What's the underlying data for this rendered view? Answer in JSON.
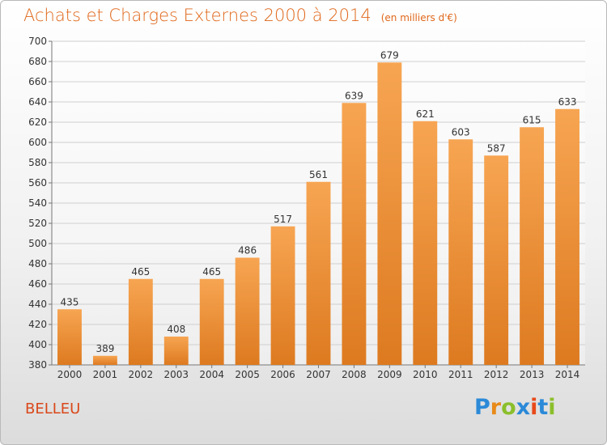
{
  "header": {
    "title": "Achats et Charges Externes 2000 à 2014",
    "unit": "(en milliers d'€)"
  },
  "location": "BELLEU",
  "logo": {
    "letters": [
      "P",
      "r",
      "o",
      "x",
      "i",
      "t",
      "i"
    ],
    "colors": [
      "#2b8ad8",
      "#e88a1a",
      "#8bbf2b",
      "#2b8ad8",
      "#e84a1a",
      "#2b8ad8",
      "#8bbf2b"
    ]
  },
  "colors": {
    "bar_light": "#f7a552",
    "bar_dark": "#dd7a20",
    "grid": "#cfcfcf"
  },
  "chart_data": {
    "type": "bar",
    "categories": [
      "2000",
      "2001",
      "2002",
      "2003",
      "2004",
      "2005",
      "2006",
      "2007",
      "2008",
      "2009",
      "2010",
      "2011",
      "2012",
      "2013",
      "2014"
    ],
    "values": [
      435,
      389,
      465,
      408,
      465,
      486,
      517,
      561,
      639,
      679,
      621,
      603,
      587,
      615,
      633
    ],
    "data_labels": [
      "435",
      "389",
      "465",
      "408",
      "465",
      "486",
      "517",
      "561",
      "639",
      "679",
      "621",
      "603",
      "587",
      "615",
      "633"
    ],
    "title": "Achats et Charges Externes 2000 à 2014",
    "xlabel": "",
    "ylabel": "",
    "ylim": [
      380,
      700
    ],
    "yticks": [
      380,
      400,
      420,
      440,
      460,
      480,
      500,
      520,
      540,
      560,
      580,
      600,
      620,
      640,
      660,
      680,
      700
    ],
    "grid": true
  }
}
